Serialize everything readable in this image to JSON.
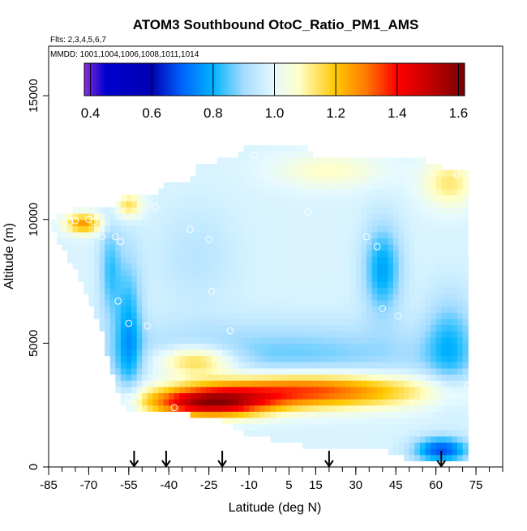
{
  "chart_data": {
    "type": "heatmap",
    "title": "ATOM3 Southbound OtoC_Ratio_PM1_AMS",
    "subtitle_flights": "Flts: 2,3,4,5,6,7",
    "subtitle_dates": "MMDD: 1001,1004,1006,1008,1011,1014",
    "xlabel": "Latitude (deg N)",
    "ylabel": "Altitude (m)",
    "xlim": [
      -85,
      85
    ],
    "ylim": [
      0,
      17000
    ],
    "x_ticks": [
      -85,
      -70,
      -55,
      -40,
      -25,
      -10,
      5,
      15,
      30,
      45,
      60,
      75
    ],
    "x_tick_labels": [
      "-85",
      "-70",
      "-55",
      "-40",
      "-25",
      "-10",
      "5",
      "15",
      "30",
      "45",
      "60",
      "75"
    ],
    "y_ticks": [
      0,
      5000,
      10000,
      15000
    ],
    "y_tick_labels": [
      "0",
      "5000",
      "10000",
      "15000"
    ],
    "colorbar": {
      "range": [
        0.38,
        1.62
      ],
      "ticks": [
        0.4,
        0.6,
        0.8,
        1.0,
        1.2,
        1.4,
        1.6
      ],
      "tick_labels": [
        "0.4",
        "0.6",
        "0.8",
        "1.0",
        "1.2",
        "1.4",
        "1.6"
      ],
      "stops": [
        {
          "v": 0.38,
          "c": "#8a2be2"
        },
        {
          "v": 0.45,
          "c": "#0000cd"
        },
        {
          "v": 0.6,
          "c": "#0000b4"
        },
        {
          "v": 0.7,
          "c": "#0064ff"
        },
        {
          "v": 0.8,
          "c": "#00b4ff"
        },
        {
          "v": 0.9,
          "c": "#a5dcff"
        },
        {
          "v": 1.0,
          "c": "#e6faff"
        },
        {
          "v": 1.08,
          "c": "#ffffc8"
        },
        {
          "v": 1.2,
          "c": "#ffc800"
        },
        {
          "v": 1.3,
          "c": "#ff7800"
        },
        {
          "v": 1.4,
          "c": "#ff0000"
        },
        {
          "v": 1.5,
          "c": "#c80000"
        },
        {
          "v": 1.62,
          "c": "#780000"
        }
      ]
    },
    "arrows_latitude": [
      -53,
      -41,
      -20,
      20,
      62
    ],
    "field": {
      "lat_range": [
        -84,
        72
      ],
      "alt_top": [
        [
          -84,
          9900
        ],
        [
          -72,
          10400
        ],
        [
          -68,
          10500
        ],
        [
          -60,
          10500
        ],
        [
          -58,
          11000
        ],
        [
          -45,
          11000
        ],
        [
          -40,
          11500
        ],
        [
          -32,
          11500
        ],
        [
          -30,
          12000
        ],
        [
          -15,
          12500
        ],
        [
          -10,
          12900
        ],
        [
          10,
          12900
        ],
        [
          15,
          12500
        ],
        [
          40,
          12500
        ],
        [
          55,
          12300
        ],
        [
          62,
          12000
        ],
        [
          72,
          12000
        ]
      ],
      "alt_bottom": [
        [
          -84,
          9800
        ],
        [
          -80,
          9000
        ],
        [
          -75,
          8000
        ],
        [
          -70,
          7000
        ],
        [
          -65,
          5500
        ],
        [
          -60,
          3500
        ],
        [
          -56,
          2400
        ],
        [
          -40,
          2400
        ],
        [
          -20,
          2000
        ],
        [
          -10,
          1400
        ],
        [
          10,
          1000
        ],
        [
          30,
          900
        ],
        [
          45,
          700
        ],
        [
          50,
          400
        ],
        [
          72,
          400
        ]
      ]
    },
    "observations": [
      {
        "lat": -77,
        "alt": 9900
      },
      {
        "lat": -75,
        "alt": 9950
      },
      {
        "lat": -70,
        "alt": 10000
      },
      {
        "lat": -68,
        "alt": 9900
      },
      {
        "lat": -65,
        "alt": 9300
      },
      {
        "lat": -60,
        "alt": 9300
      },
      {
        "lat": -58,
        "alt": 9100
      },
      {
        "lat": -55,
        "alt": 10900
      },
      {
        "lat": -45,
        "alt": 10500
      },
      {
        "lat": -32,
        "alt": 9600
      },
      {
        "lat": -25,
        "alt": 9200
      },
      {
        "lat": -8,
        "alt": 12600
      },
      {
        "lat": 12,
        "alt": 10300
      },
      {
        "lat": 34,
        "alt": 9300
      },
      {
        "lat": 38,
        "alt": 8900
      },
      {
        "lat": 40,
        "alt": 6400
      },
      {
        "lat": 46,
        "alt": 6100
      },
      {
        "lat": 68,
        "alt": 11800
      },
      {
        "lat": -59,
        "alt": 6700
      },
      {
        "lat": -55,
        "alt": 5800
      },
      {
        "lat": -48,
        "alt": 5700
      },
      {
        "lat": -24,
        "alt": 7100
      },
      {
        "lat": -17,
        "alt": 5500
      },
      {
        "lat": -55,
        "alt": 2800
      },
      {
        "lat": -38,
        "alt": 2400
      },
      {
        "lat": 72,
        "alt": 3300
      }
    ]
  }
}
